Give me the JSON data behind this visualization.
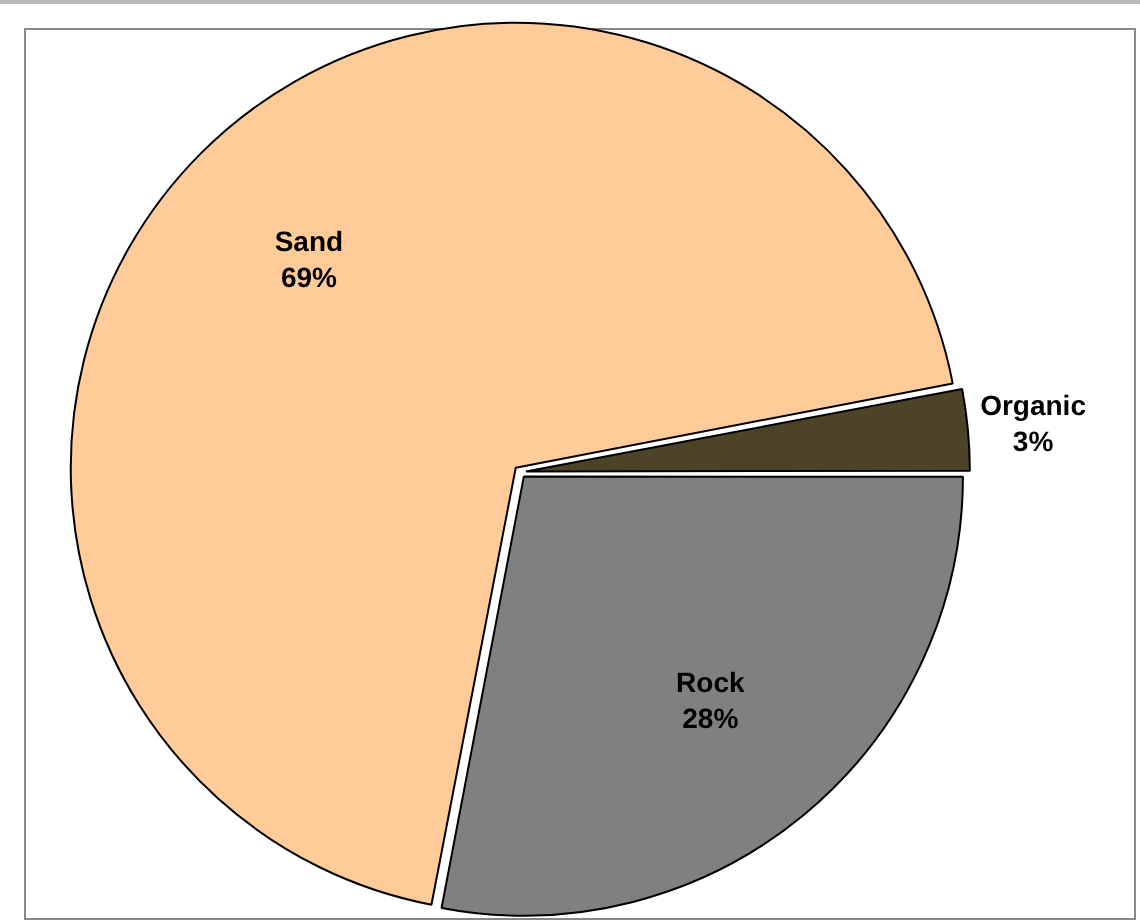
{
  "chart_data": {
    "type": "pie",
    "categories": [
      "Rock",
      "Sand",
      "Organic"
    ],
    "values": [
      28,
      69,
      3
    ],
    "colors": [
      "#808080",
      "#ffcc99",
      "#4d4329"
    ],
    "value_labels": [
      "28%",
      "69%",
      "3%"
    ],
    "legend": false
  }
}
